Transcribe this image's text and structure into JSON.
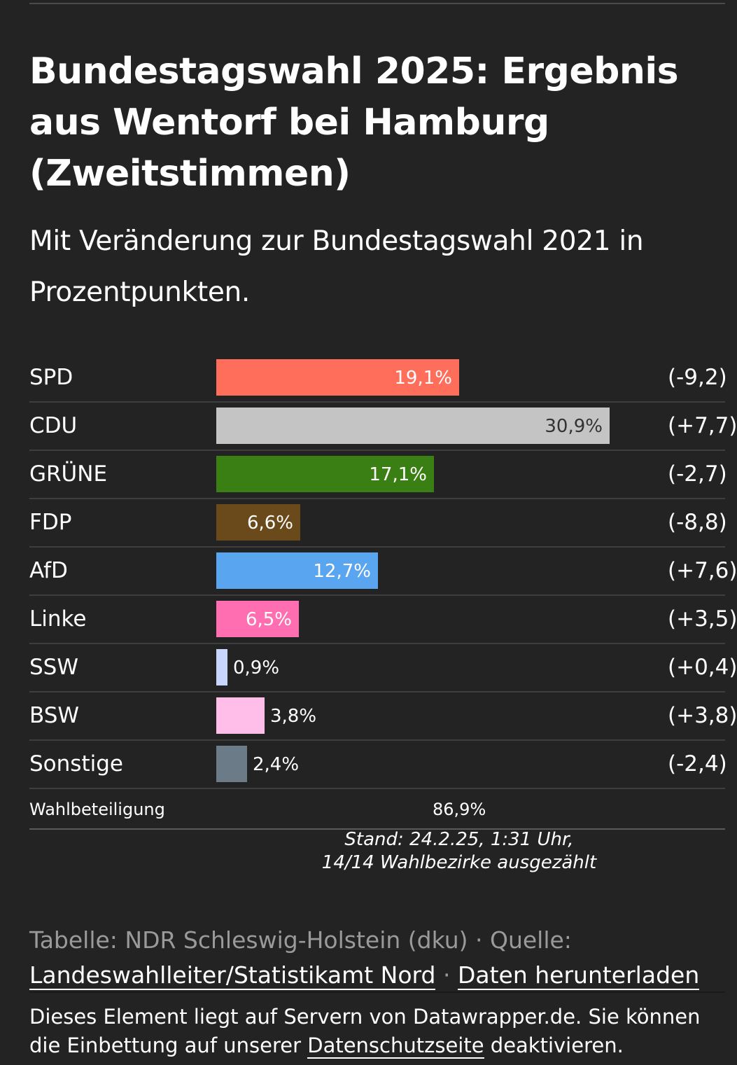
{
  "title": "Bundestagswahl 2025: Ergebnis aus Wentorf bei Hamburg (Zweitstimmen)",
  "subtitle": "Mit Veränderung zur Bundestagswahl 2021 in Prozentpunkten.",
  "chart_data": {
    "type": "bar",
    "orientation": "horizontal",
    "title": "Bundestagswahl 2025: Ergebnis aus Wentorf bei Hamburg (Zweitstimmen)",
    "categories": [
      "SPD",
      "CDU",
      "GRÜNE",
      "FDP",
      "AfD",
      "Linke",
      "SSW",
      "BSW",
      "Sonstige"
    ],
    "values": [
      19.1,
      30.9,
      17.1,
      6.6,
      12.7,
      6.5,
      0.9,
      3.8,
      2.4
    ],
    "value_labels": [
      "19,1%",
      "30,9%",
      "17,1%",
      "6,6%",
      "12,7%",
      "6,5%",
      "0,9%",
      "3,8%",
      "2,4%"
    ],
    "changes": [
      -9.2,
      7.7,
      -2.7,
      -8.8,
      7.6,
      3.5,
      0.4,
      3.8,
      -2.4
    ],
    "change_labels": [
      "(-9,2)",
      "(+7,7)",
      "(-2,7)",
      "(-8,8)",
      "(+7,6)",
      "(+3,5)",
      "(+0,4)",
      "(+3,8)",
      "(-2,4)"
    ],
    "colors": [
      "#ff6e5a",
      "#c4c4c4",
      "#3a7f14",
      "#6a4a1a",
      "#5aa5f0",
      "#ff6eb0",
      "#c8d6ff",
      "#ffbde9",
      "#6b7b88"
    ],
    "label_colors": [
      "#ffffff",
      "#333333",
      "#ffffff",
      "#ffffff",
      "#ffffff",
      "#ffffff",
      "#ffffff",
      "#ffffff",
      "#ffffff"
    ],
    "xlim": [
      0,
      30.9
    ]
  },
  "turnout": {
    "label": "Wahlbeteiligung",
    "value": "86,9%"
  },
  "stand": {
    "line1": "Stand: 24.2.25, 1:31 Uhr,",
    "line2": "14/14 Wahlbezirke ausgezählt"
  },
  "source": {
    "prefix": "Tabelle: NDR Schleswig-Holstein (dku) · Quelle:",
    "link1": "Landeswahlleiter/Statistikamt Nord",
    "sep": " · ",
    "link2": "Daten herunterladen"
  },
  "notice": {
    "text1": "Dieses Element liegt auf Servern von Datawrapper.de. Sie können die Einbettung auf unserer ",
    "link": "Datenschutzseite",
    "text2": " deaktivieren."
  }
}
